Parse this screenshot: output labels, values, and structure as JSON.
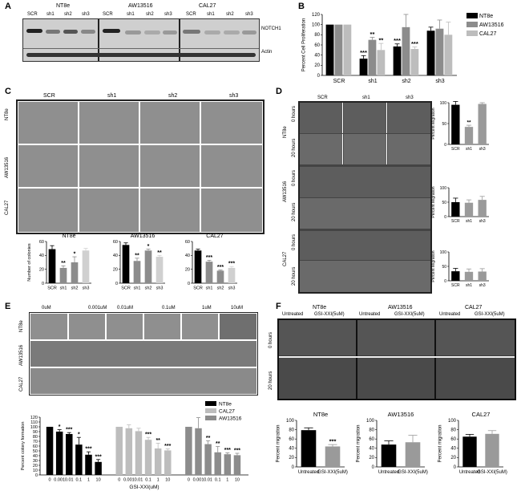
{
  "panels": {
    "A": "A",
    "B": "B",
    "C": "C",
    "D": "D",
    "E": "E",
    "F": "F"
  },
  "panelA": {
    "groups": [
      "NT8e",
      "AW13516",
      "CAL27"
    ],
    "lanes": [
      "SCR",
      "sh1",
      "sh2",
      "sh3",
      "SCR",
      "sh1",
      "sh2",
      "sh3",
      "SCR",
      "sh1",
      "sh2",
      "sh3"
    ],
    "proteins": [
      "NOTCH1",
      "Actin"
    ]
  },
  "panelC": {
    "columns": [
      "SCR",
      "sh1",
      "sh2",
      "sh3"
    ],
    "rows": [
      "NT8e",
      "AW13516",
      "CAL27"
    ]
  },
  "panelD": {
    "columns": [
      "SCR",
      "sh1",
      "sh3"
    ],
    "rows": [
      "NT8e",
      "AW13516",
      "CAL27"
    ],
    "times": [
      "0 hours",
      "20 hours"
    ]
  },
  "panelE": {
    "columns": [
      "0uM",
      "0.001uM",
      "0.01uM",
      "0.1uM",
      "1uM",
      "10uM"
    ],
    "rows": [
      "NT8e",
      "AW13516",
      "CAL27"
    ]
  },
  "panelF": {
    "cells": [
      "NT8e",
      "AW13516",
      "CAL27"
    ],
    "columns": [
      "Untreated",
      "GSI-XXI(5uM)",
      "Untreated",
      "GSI-XXI(5uM)",
      "Untreated",
      "GSI-XXI(5uM)"
    ],
    "times": [
      "0 hours",
      "20 hours"
    ]
  },
  "colors": {
    "NT8e": "#000000",
    "AW13516": "#8c8c8c",
    "CAL27": "#bdbdbd"
  },
  "chart_data": [
    {
      "id": "B",
      "type": "bar",
      "ylabel": "Percent Cell Proliferation",
      "ylim": [
        0,
        120
      ],
      "yticks": [
        0,
        20,
        40,
        60,
        80,
        100,
        120
      ],
      "categories": [
        "SCR",
        "sh1",
        "sh2",
        "sh3"
      ],
      "series": [
        {
          "name": "NT8e",
          "values": [
            100,
            33,
            57,
            88
          ],
          "errors": [
            0,
            6,
            5,
            7
          ],
          "stars": [
            "",
            "***",
            "***",
            ""
          ]
        },
        {
          "name": "AW13516",
          "values": [
            100,
            70,
            95,
            92
          ],
          "errors": [
            0,
            5,
            25,
            17
          ],
          "stars": [
            "",
            "**",
            "",
            ""
          ]
        },
        {
          "name": "CAL27",
          "values": [
            100,
            50,
            52,
            80
          ],
          "errors": [
            0,
            13,
            4,
            25
          ],
          "stars": [
            "",
            "**",
            "***",
            ""
          ]
        }
      ]
    },
    {
      "id": "C1",
      "type": "bar",
      "title": "NT8e",
      "ylabel": "Number of colonies",
      "ylim": [
        0,
        60
      ],
      "yticks": [
        0,
        20,
        40,
        60
      ],
      "categories": [
        "SCR",
        "sh1",
        "sh2",
        "sh3"
      ],
      "values": [
        49,
        22,
        30,
        47
      ],
      "errors": [
        5,
        3,
        8,
        3
      ],
      "stars": [
        "",
        "**",
        "*",
        ""
      ],
      "colors": [
        "#000000",
        "#8c8c8c",
        "#8c8c8c",
        "#d0d0d0"
      ]
    },
    {
      "id": "C2",
      "type": "bar",
      "title": "AW13516",
      "ylim": [
        0,
        60
      ],
      "yticks": [
        0,
        20,
        40,
        60
      ],
      "categories": [
        "SCR",
        "sh1",
        "sh2",
        "sh3"
      ],
      "values": [
        55,
        32,
        47,
        38
      ],
      "errors": [
        3,
        4,
        2,
        2
      ],
      "stars": [
        "",
        "**",
        "*",
        "**"
      ],
      "colors": [
        "#000000",
        "#8c8c8c",
        "#8c8c8c",
        "#d0d0d0"
      ]
    },
    {
      "id": "C3",
      "type": "bar",
      "title": "CAL27",
      "ylim": [
        0,
        60
      ],
      "yticks": [
        0,
        20,
        40,
        60
      ],
      "categories": [
        "SCR",
        "sh1",
        "sh2",
        "sh3"
      ],
      "values": [
        47,
        31,
        18,
        22
      ],
      "errors": [
        2,
        2,
        1,
        2
      ],
      "stars": [
        "",
        "***",
        "***",
        "***"
      ],
      "colors": [
        "#000000",
        "#8c8c8c",
        "#8c8c8c",
        "#d0d0d0"
      ]
    },
    {
      "id": "D1",
      "type": "bar",
      "ylabel": "Percent Migration",
      "ylim": [
        0,
        100
      ],
      "yticks": [
        0,
        50,
        100
      ],
      "categories": [
        "SCR",
        "sh1",
        "sh3"
      ],
      "values": [
        95,
        42,
        97
      ],
      "errors": [
        8,
        4,
        3
      ],
      "stars": [
        "",
        "**",
        ""
      ],
      "colors": [
        "#000000",
        "#9a9a9a",
        "#9a9a9a"
      ]
    },
    {
      "id": "D2",
      "type": "bar",
      "ylabel": "Percent Migration",
      "ylim": [
        0,
        100
      ],
      "yticks": [
        0,
        50,
        100
      ],
      "categories": [
        "SCR",
        "sh1",
        "sh3"
      ],
      "values": [
        50,
        48,
        58
      ],
      "errors": [
        14,
        10,
        12
      ],
      "stars": [
        "",
        "",
        ""
      ],
      "colors": [
        "#000000",
        "#9a9a9a",
        "#9a9a9a"
      ]
    },
    {
      "id": "D3",
      "type": "bar",
      "ylabel": "Percent Migration",
      "ylim": [
        0,
        100
      ],
      "yticks": [
        0,
        50,
        100
      ],
      "categories": [
        "SCR",
        "sh1",
        "sh3"
      ],
      "values": [
        33,
        31,
        32
      ],
      "errors": [
        10,
        10,
        10
      ],
      "stars": [
        "",
        "",
        ""
      ],
      "colors": [
        "#000000",
        "#9a9a9a",
        "#9a9a9a"
      ]
    },
    {
      "id": "E",
      "type": "bar",
      "ylabel": "Percent colony formation",
      "xlabel": "GSI-XXI(uM)",
      "ylim": [
        0,
        120
      ],
      "yticks": [
        0,
        10,
        20,
        30,
        40,
        50,
        60,
        70,
        80,
        90,
        100,
        110,
        120
      ],
      "categories": [
        "0",
        "0.001",
        "0.01",
        "0.1",
        "1",
        "10"
      ],
      "series": [
        {
          "name": "NT8e",
          "values": [
            100,
            90,
            85,
            63,
            42,
            27
          ],
          "errors": [
            0,
            4,
            3,
            15,
            6,
            5
          ],
          "stars": [
            "",
            "*",
            "***",
            "*",
            "***",
            "***"
          ]
        },
        {
          "name": "CAL27",
          "values": [
            100,
            97,
            91,
            73,
            55,
            51
          ],
          "errors": [
            0,
            7,
            6,
            5,
            11,
            3
          ],
          "stars": [
            "",
            "",
            "",
            "***",
            "**",
            "***"
          ]
        },
        {
          "name": "AW13516",
          "values": [
            100,
            97,
            64,
            47,
            43,
            41
          ],
          "errors": [
            0,
            22,
            7,
            12,
            3,
            4
          ],
          "stars": [
            "",
            "",
            "**",
            "**",
            "***",
            "***"
          ]
        }
      ]
    },
    {
      "id": "F1",
      "type": "bar",
      "title": "NT8e",
      "ylabel": "Percent migration",
      "ylim": [
        0,
        100
      ],
      "yticks": [
        0,
        20,
        40,
        60,
        80,
        100
      ],
      "categories": [
        "Untreated",
        "GSI-XXI(5uM)"
      ],
      "values": [
        79,
        44
      ],
      "errors": [
        5,
        4
      ],
      "stars": [
        "",
        "***"
      ],
      "colors": [
        "#000000",
        "#9a9a9a"
      ]
    },
    {
      "id": "F2",
      "type": "bar",
      "title": "AW13516",
      "ylabel": "Percent migration",
      "ylim": [
        0,
        100
      ],
      "yticks": [
        0,
        20,
        40,
        60,
        80,
        100
      ],
      "categories": [
        "Untreated",
        "GSI-XXI(5uM)"
      ],
      "values": [
        48,
        53
      ],
      "errors": [
        8,
        15
      ],
      "stars": [
        "",
        ""
      ],
      "colors": [
        "#000000",
        "#9a9a9a"
      ]
    },
    {
      "id": "F3",
      "type": "bar",
      "title": "CAL27",
      "ylabel": "Percent migration",
      "ylim": [
        0,
        100
      ],
      "yticks": [
        0,
        20,
        40,
        60,
        80,
        100
      ],
      "categories": [
        "Untreated",
        "GSI-XXI(5uM)"
      ],
      "values": [
        65,
        71
      ],
      "errors": [
        5,
        7
      ],
      "stars": [
        "",
        ""
      ],
      "colors": [
        "#000000",
        "#9a9a9a"
      ]
    }
  ]
}
